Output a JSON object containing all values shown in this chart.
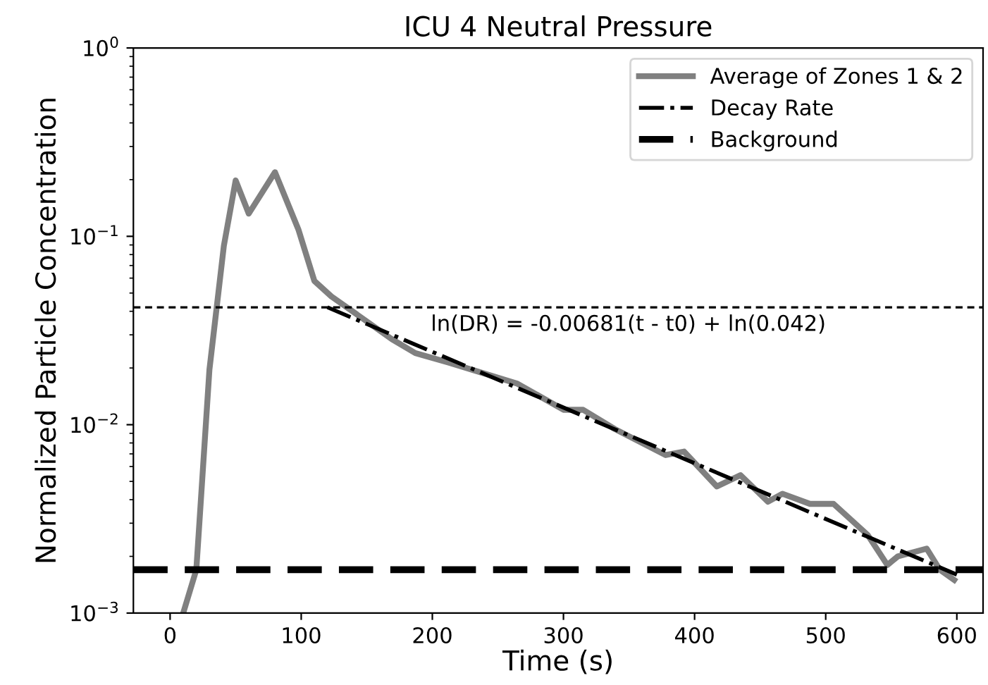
{
  "chart_data": {
    "type": "line",
    "title": "ICU 4 Neutral Pressure",
    "xlabel": "Time (s)",
    "ylabel": "Normalized Particle Concentration",
    "log": "y",
    "xlim": [
      -28,
      620
    ],
    "xticks": [
      0,
      100,
      200,
      300,
      400,
      500,
      600
    ],
    "ylim": [
      0.001,
      1
    ],
    "yticks": [
      {
        "value": 0.001,
        "label": "10$^{−3}$"
      },
      {
        "value": 0.01,
        "label": "10$^{−2}$"
      },
      {
        "value": 0.1,
        "label": "10$^{−1}$"
      },
      {
        "value": 1,
        "label": "10$^{0}$"
      }
    ],
    "grid": false,
    "legend": "top right",
    "series": [
      {
        "name": "Average of Zones 1 & 2",
        "color": "#808080",
        "line_style": "solid",
        "x": [
          10,
          20,
          30,
          41,
          50,
          60,
          80,
          98,
          110,
          123,
          169,
          187,
          212,
          265,
          300,
          315,
          339,
          378,
          392,
          417,
          435,
          456,
          467,
          488,
          506,
          532,
          547,
          555,
          577,
          587,
          598
        ],
        "values": [
          0.001,
          0.0017,
          0.0196,
          0.089,
          0.198,
          0.132,
          0.219,
          0.108,
          0.058,
          0.048,
          0.0285,
          0.024,
          0.0214,
          0.0165,
          0.012,
          0.012,
          0.0095,
          0.0069,
          0.0072,
          0.0047,
          0.0054,
          0.0039,
          0.0043,
          0.0038,
          0.0038,
          0.0026,
          0.0018,
          0.002,
          0.0022,
          0.0017,
          0.0015
        ]
      },
      {
        "name": "Decay Rate",
        "color": "#000000",
        "line_style": "dashdot",
        "x": [
          120,
          600
        ],
        "values": [
          0.042,
          0.0016
        ]
      }
    ],
    "ref_lines": [
      {
        "axis": "y",
        "value": 0.0017,
        "label": "Background",
        "color": "#000000",
        "line_style": "dashed"
      },
      {
        "axis": "y",
        "value": 0.042,
        "color": "#000000",
        "line_style": "dotted"
      }
    ],
    "annotations": [
      "ln(DR) = -0.00681(t - t0) + ln(0.042)"
    ]
  }
}
